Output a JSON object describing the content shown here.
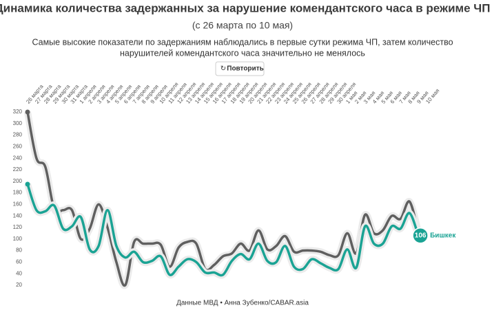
{
  "chart_data": {
    "type": "line",
    "title": "Динамика количества задержанных за нарушение комендантского часа в режиме ЧП",
    "subtitle": "(с 26 марта по 10 мая)",
    "description": [
      "Самые высокие показатели по задержаниям наблюдались в первые сутки режима ЧП, затем количество",
      "нарушителей комендантского часа значительно не менялось"
    ],
    "button": "Повторить",
    "source": "Данные МВД • Анна Зубенко/CABAR.asia",
    "categories": [
      "26 марта",
      "27 марта",
      "28 марта",
      "29 марта",
      "30 марта",
      "31 марта",
      "1 апреля",
      "2 апреля",
      "3 апреля",
      "4 апреля",
      "5 апреля",
      "6 апреля",
      "7 апреля",
      "8 апреля",
      "9 апреля",
      "10 апреля",
      "11 апреля",
      "12 апреля",
      "13 апреля",
      "14 апреля",
      "15 апреля",
      "16 апреля",
      "17 апреля",
      "18 апреля",
      "19 апреля",
      "20 апреля",
      "21 апреля",
      "22 апреля",
      "23 апреля",
      "24 апреля",
      "25 апреля",
      "26 апреля",
      "27 апреля",
      "28 апреля",
      "29 апреля",
      "30 апреля",
      "1 мая",
      "2 мая",
      "3 мая",
      "4 мая",
      "5 мая",
      "6 мая",
      "7 мая",
      "8 мая",
      "9 мая",
      "10 мая"
    ],
    "series": [
      {
        "color": "#5f5f5f",
        "values": [
          320,
          240,
          225,
          152,
          150,
          150,
          100,
          118,
          160,
          120,
          60,
          20,
          95,
          92,
          92,
          90,
          52,
          85,
          95,
          92,
          48,
          55,
          70,
          75,
          92,
          80,
          115,
          82,
          88,
          105,
          78,
          80,
          80,
          78,
          72,
          72,
          110,
          75,
          142,
          110,
          115,
          140,
          135,
          165,
          112,
          null
        ]
      },
      {
        "name": "Бишкек",
        "color": "#1aa394",
        "values": [
          195,
          150,
          148,
          158,
          118,
          122,
          138,
          82,
          88,
          150,
          88,
          68,
          78,
          60,
          62,
          70,
          38,
          52,
          65,
          60,
          42,
          42,
          38,
          62,
          74,
          65,
          92,
          62,
          60,
          88,
          52,
          48,
          65,
          58,
          50,
          48,
          82,
          50,
          122,
          92,
          92,
          122,
          118,
          145,
          106,
          null
        ]
      }
    ],
    "ylim": [
      20,
      320
    ],
    "yticks": [
      20,
      40,
      60,
      80,
      100,
      120,
      140,
      160,
      180,
      200,
      220,
      240,
      260,
      280,
      300,
      320
    ],
    "grid": false
  }
}
